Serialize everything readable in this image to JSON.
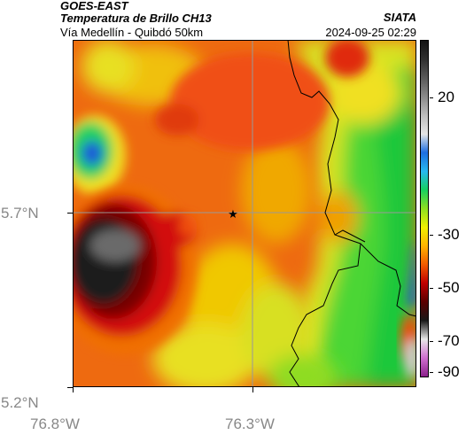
{
  "header": {
    "product": "GOES-EAST",
    "title": "Temperatura de Brillo CH13",
    "source": "SIATA",
    "subtitle": "Vía Medellín - Quibdó 50km",
    "timestamp": "2024-09-25 02:29"
  },
  "axes": {
    "lat_labels": [
      "5.7°N",
      "5.2°N"
    ],
    "lon_labels": [
      "76.8°W",
      "76.3°W"
    ]
  },
  "marker": {
    "icon": "star-icon"
  },
  "colorbar": {
    "labels": [
      "20",
      "-30",
      "-50",
      "-70",
      "-90"
    ],
    "gradient": [
      "#141414",
      "#303030",
      "#5a5a5a",
      "#8a8a8a",
      "#bdbdbd",
      "#e6e6e6",
      "#1e6ee0",
      "#27b8f0",
      "#16d060",
      "#8ee020",
      "#f0f000",
      "#ffb400",
      "#f05a00",
      "#c00000",
      "#5a0000",
      "#181818",
      "#e8e8e8",
      "#d070d0",
      "#8a208a"
    ]
  }
}
